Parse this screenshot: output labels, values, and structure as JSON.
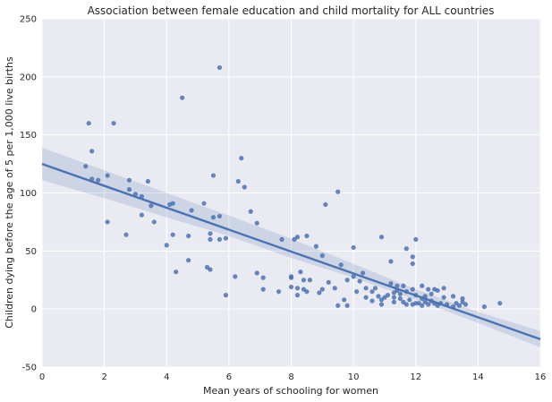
{
  "chart_data": {
    "type": "scatter",
    "title": "Association between female education and child mortality for ALL countries",
    "xlabel": "Mean years of schooling for women",
    "ylabel": "Children dying before the age of 5 per 1,000 live births",
    "xlim": [
      0,
      16
    ],
    "ylim": [
      -50,
      250
    ],
    "xticks": [
      0,
      2,
      4,
      6,
      8,
      10,
      12,
      14,
      16
    ],
    "yticks": [
      -50,
      0,
      50,
      100,
      150,
      200,
      250
    ],
    "grid": true,
    "regression": {
      "x": [
        0,
        16
      ],
      "y": [
        125,
        -26
      ],
      "ci_band": {
        "x": [
          0,
          2,
          4,
          6,
          8,
          10,
          12,
          14,
          16
        ],
        "upper": [
          139,
          119.5,
          100,
          80.5,
          60.5,
          39,
          17,
          -2.5,
          -19
        ],
        "lower": [
          111,
          95.5,
          79,
          63,
          44,
          27,
          8,
          -12,
          -33
        ]
      },
      "color": "#4c72b0"
    },
    "points_color": "#4c72b0",
    "points": [
      {
        "x": 1.4,
        "y": 123
      },
      {
        "x": 1.5,
        "y": 160
      },
      {
        "x": 1.6,
        "y": 136
      },
      {
        "x": 1.6,
        "y": 112
      },
      {
        "x": 1.8,
        "y": 111
      },
      {
        "x": 2.1,
        "y": 115
      },
      {
        "x": 2.1,
        "y": 75
      },
      {
        "x": 2.3,
        "y": 160
      },
      {
        "x": 2.7,
        "y": 64
      },
      {
        "x": 2.8,
        "y": 111
      },
      {
        "x": 2.8,
        "y": 103
      },
      {
        "x": 3.0,
        "y": 99
      },
      {
        "x": 3.2,
        "y": 97
      },
      {
        "x": 3.2,
        "y": 81
      },
      {
        "x": 3.4,
        "y": 110
      },
      {
        "x": 3.5,
        "y": 89
      },
      {
        "x": 3.6,
        "y": 75
      },
      {
        "x": 4.0,
        "y": 55
      },
      {
        "x": 4.1,
        "y": 90
      },
      {
        "x": 4.2,
        "y": 64
      },
      {
        "x": 4.3,
        "y": 32
      },
      {
        "x": 4.2,
        "y": 91
      },
      {
        "x": 4.5,
        "y": 182
      },
      {
        "x": 4.7,
        "y": 63
      },
      {
        "x": 4.7,
        "y": 42
      },
      {
        "x": 4.8,
        "y": 85
      },
      {
        "x": 5.2,
        "y": 91
      },
      {
        "x": 5.3,
        "y": 36
      },
      {
        "x": 5.4,
        "y": 60
      },
      {
        "x": 5.4,
        "y": 34
      },
      {
        "x": 5.5,
        "y": 115
      },
      {
        "x": 5.5,
        "y": 79
      },
      {
        "x": 5.4,
        "y": 65
      },
      {
        "x": 5.7,
        "y": 208
      },
      {
        "x": 5.7,
        "y": 80
      },
      {
        "x": 5.7,
        "y": 60
      },
      {
        "x": 5.9,
        "y": 12
      },
      {
        "x": 5.9,
        "y": 61
      },
      {
        "x": 6.2,
        "y": 28
      },
      {
        "x": 6.3,
        "y": 110
      },
      {
        "x": 6.4,
        "y": 130
      },
      {
        "x": 6.5,
        "y": 105
      },
      {
        "x": 6.7,
        "y": 84
      },
      {
        "x": 6.9,
        "y": 74
      },
      {
        "x": 6.9,
        "y": 31
      },
      {
        "x": 7.1,
        "y": 27
      },
      {
        "x": 7.1,
        "y": 17
      },
      {
        "x": 7.6,
        "y": 15
      },
      {
        "x": 7.7,
        "y": 60
      },
      {
        "x": 8.0,
        "y": 27
      },
      {
        "x": 8.0,
        "y": 28
      },
      {
        "x": 8.0,
        "y": 19
      },
      {
        "x": 8.1,
        "y": 60
      },
      {
        "x": 8.2,
        "y": 62
      },
      {
        "x": 8.2,
        "y": 18
      },
      {
        "x": 8.2,
        "y": 12
      },
      {
        "x": 8.3,
        "y": 32
      },
      {
        "x": 8.4,
        "y": 25
      },
      {
        "x": 8.4,
        "y": 17
      },
      {
        "x": 8.5,
        "y": 15
      },
      {
        "x": 8.5,
        "y": 63
      },
      {
        "x": 8.6,
        "y": 25
      },
      {
        "x": 8.8,
        "y": 54
      },
      {
        "x": 8.9,
        "y": 14
      },
      {
        "x": 9.0,
        "y": 46
      },
      {
        "x": 9.0,
        "y": 17
      },
      {
        "x": 9.1,
        "y": 90
      },
      {
        "x": 9.2,
        "y": 23
      },
      {
        "x": 9.4,
        "y": 18
      },
      {
        "x": 9.5,
        "y": 101
      },
      {
        "x": 9.5,
        "y": 3
      },
      {
        "x": 9.6,
        "y": 38
      },
      {
        "x": 9.7,
        "y": 8
      },
      {
        "x": 9.8,
        "y": 25
      },
      {
        "x": 9.8,
        "y": 3
      },
      {
        "x": 10.0,
        "y": 53
      },
      {
        "x": 10.0,
        "y": 28
      },
      {
        "x": 10.1,
        "y": 15
      },
      {
        "x": 10.2,
        "y": 24
      },
      {
        "x": 10.3,
        "y": 31
      },
      {
        "x": 10.4,
        "y": 18
      },
      {
        "x": 10.4,
        "y": 10
      },
      {
        "x": 10.6,
        "y": 7
      },
      {
        "x": 10.6,
        "y": 15
      },
      {
        "x": 10.7,
        "y": 18
      },
      {
        "x": 10.8,
        "y": 11
      },
      {
        "x": 10.9,
        "y": 62
      },
      {
        "x": 10.9,
        "y": 8
      },
      {
        "x": 10.9,
        "y": 4
      },
      {
        "x": 11.0,
        "y": 10
      },
      {
        "x": 11.1,
        "y": 12
      },
      {
        "x": 11.2,
        "y": 41
      },
      {
        "x": 11.2,
        "y": 22
      },
      {
        "x": 11.3,
        "y": 14
      },
      {
        "x": 11.3,
        "y": 10
      },
      {
        "x": 11.3,
        "y": 6
      },
      {
        "x": 11.4,
        "y": 20
      },
      {
        "x": 11.4,
        "y": 16
      },
      {
        "x": 11.5,
        "y": 13
      },
      {
        "x": 11.5,
        "y": 9
      },
      {
        "x": 11.6,
        "y": 6
      },
      {
        "x": 11.6,
        "y": 20
      },
      {
        "x": 11.7,
        "y": 52
      },
      {
        "x": 11.7,
        "y": 15
      },
      {
        "x": 11.7,
        "y": 4
      },
      {
        "x": 11.8,
        "y": 8
      },
      {
        "x": 11.9,
        "y": 45
      },
      {
        "x": 11.9,
        "y": 39
      },
      {
        "x": 11.9,
        "y": 17
      },
      {
        "x": 11.9,
        "y": 4
      },
      {
        "x": 12.0,
        "y": 60
      },
      {
        "x": 12.0,
        "y": 12
      },
      {
        "x": 12.0,
        "y": 5
      },
      {
        "x": 12.1,
        "y": 5
      },
      {
        "x": 12.2,
        "y": 20
      },
      {
        "x": 12.2,
        "y": 9
      },
      {
        "x": 12.2,
        "y": 3
      },
      {
        "x": 12.3,
        "y": 11
      },
      {
        "x": 12.3,
        "y": 6
      },
      {
        "x": 12.4,
        "y": 17
      },
      {
        "x": 12.4,
        "y": 4
      },
      {
        "x": 12.5,
        "y": 13
      },
      {
        "x": 12.5,
        "y": 7
      },
      {
        "x": 12.6,
        "y": 5
      },
      {
        "x": 12.6,
        "y": 17
      },
      {
        "x": 12.7,
        "y": 3
      },
      {
        "x": 12.7,
        "y": 16
      },
      {
        "x": 12.8,
        "y": 5
      },
      {
        "x": 12.9,
        "y": 18
      },
      {
        "x": 12.9,
        "y": 10
      },
      {
        "x": 13.0,
        "y": 4
      },
      {
        "x": 13.2,
        "y": 2
      },
      {
        "x": 13.2,
        "y": 11
      },
      {
        "x": 13.3,
        "y": 5
      },
      {
        "x": 13.4,
        "y": 3
      },
      {
        "x": 13.5,
        "y": 9
      },
      {
        "x": 13.5,
        "y": 6
      },
      {
        "x": 13.6,
        "y": 4
      },
      {
        "x": 14.2,
        "y": 2
      },
      {
        "x": 14.7,
        "y": 5
      }
    ]
  }
}
